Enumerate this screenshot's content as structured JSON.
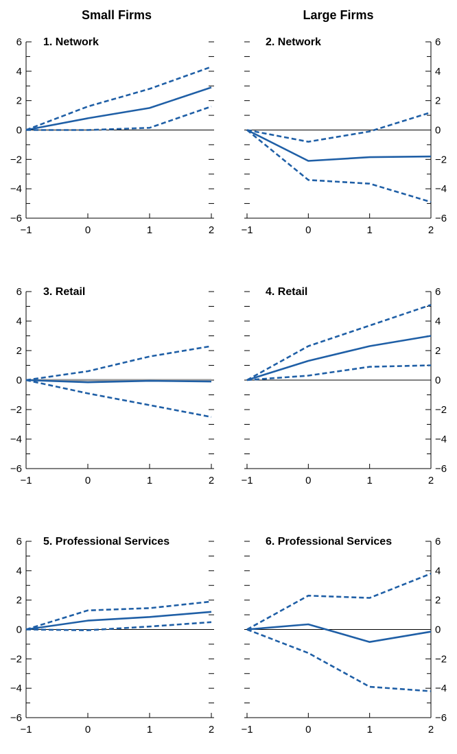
{
  "column_titles": [
    "Small Firms",
    "Large Firms"
  ],
  "colors": {
    "series": "#1f5fa6",
    "axis": "#000000",
    "zero_line_retail": "#9a9a9a"
  },
  "chart_data": [
    {
      "type": "line",
      "title": "1. Network",
      "column": "Small Firms",
      "x": [
        -1,
        0,
        1,
        2
      ],
      "xlim": [
        -1,
        2
      ],
      "ylim": [
        -6,
        6
      ],
      "yticks": [
        -6,
        -4,
        -2,
        0,
        2,
        4,
        6
      ],
      "ytick_side": "left",
      "series": [
        {
          "values": [
            0,
            0.8,
            1.5,
            2.9
          ],
          "style": "solid"
        },
        {
          "values": [
            0,
            1.6,
            2.8,
            4.3
          ],
          "style": "dashed"
        },
        {
          "values": [
            0,
            0,
            0.15,
            1.6
          ],
          "style": "dashed"
        }
      ]
    },
    {
      "type": "line",
      "title": "2. Network",
      "column": "Large Firms",
      "x": [
        -1,
        0,
        1,
        2
      ],
      "xlim": [
        -1,
        2
      ],
      "ylim": [
        -6,
        6
      ],
      "yticks": [
        -6,
        -4,
        -2,
        0,
        2,
        4,
        6
      ],
      "ytick_side": "right",
      "series": [
        {
          "values": [
            0,
            -2.1,
            -1.85,
            -1.8
          ],
          "style": "solid"
        },
        {
          "values": [
            0,
            -0.8,
            -0.1,
            1.2
          ],
          "style": "dashed"
        },
        {
          "values": [
            0,
            -3.4,
            -3.65,
            -4.9
          ],
          "style": "dashed"
        }
      ]
    },
    {
      "type": "line",
      "title": "3. Retail",
      "column": "Small Firms",
      "x": [
        -1,
        0,
        1,
        2
      ],
      "xlim": [
        -1,
        2
      ],
      "ylim": [
        -6,
        6
      ],
      "yticks": [
        -6,
        -4,
        -2,
        0,
        2,
        4,
        6
      ],
      "ytick_side": "left",
      "zero_line_color": "#9a9a9a",
      "series": [
        {
          "values": [
            0,
            -0.15,
            -0.05,
            -0.1
          ],
          "style": "solid"
        },
        {
          "values": [
            0,
            0.6,
            1.6,
            2.3
          ],
          "style": "dashed"
        },
        {
          "values": [
            0,
            -0.9,
            -1.7,
            -2.5
          ],
          "style": "dashed"
        }
      ]
    },
    {
      "type": "line",
      "title": "4. Retail",
      "column": "Large Firms",
      "x": [
        -1,
        0,
        1,
        2
      ],
      "xlim": [
        -1,
        2
      ],
      "ylim": [
        -6,
        6
      ],
      "yticks": [
        -6,
        -4,
        -2,
        0,
        2,
        4,
        6
      ],
      "ytick_side": "right",
      "series": [
        {
          "values": [
            0,
            1.3,
            2.3,
            3.0
          ],
          "style": "solid"
        },
        {
          "values": [
            0,
            2.3,
            3.7,
            5.1
          ],
          "style": "dashed"
        },
        {
          "values": [
            0,
            0.3,
            0.9,
            1.0
          ],
          "style": "dashed"
        }
      ]
    },
    {
      "type": "line",
      "title": "5. Professional Services",
      "column": "Small Firms",
      "x": [
        -1,
        0,
        1,
        2
      ],
      "xlim": [
        -1,
        2
      ],
      "ylim": [
        -6,
        6
      ],
      "yticks": [
        -6,
        -4,
        -2,
        0,
        2,
        4,
        6
      ],
      "ytick_side": "left",
      "series": [
        {
          "values": [
            0,
            0.6,
            0.85,
            1.2
          ],
          "style": "solid"
        },
        {
          "values": [
            0,
            1.3,
            1.45,
            1.9
          ],
          "style": "dashed"
        },
        {
          "values": [
            0,
            -0.05,
            0.2,
            0.5
          ],
          "style": "dashed"
        }
      ]
    },
    {
      "type": "line",
      "title": "6. Professional Services",
      "column": "Large Firms",
      "x": [
        -1,
        0,
        1,
        2
      ],
      "xlim": [
        -1,
        2
      ],
      "ylim": [
        -6,
        6
      ],
      "yticks": [
        -6,
        -4,
        -2,
        0,
        2,
        4,
        6
      ],
      "ytick_side": "right",
      "series": [
        {
          "values": [
            0,
            0.35,
            -0.85,
            -0.15
          ],
          "style": "solid"
        },
        {
          "values": [
            0,
            2.3,
            2.15,
            3.8
          ],
          "style": "dashed"
        },
        {
          "values": [
            0,
            -1.6,
            -3.9,
            -4.2
          ],
          "style": "dashed"
        }
      ]
    }
  ]
}
